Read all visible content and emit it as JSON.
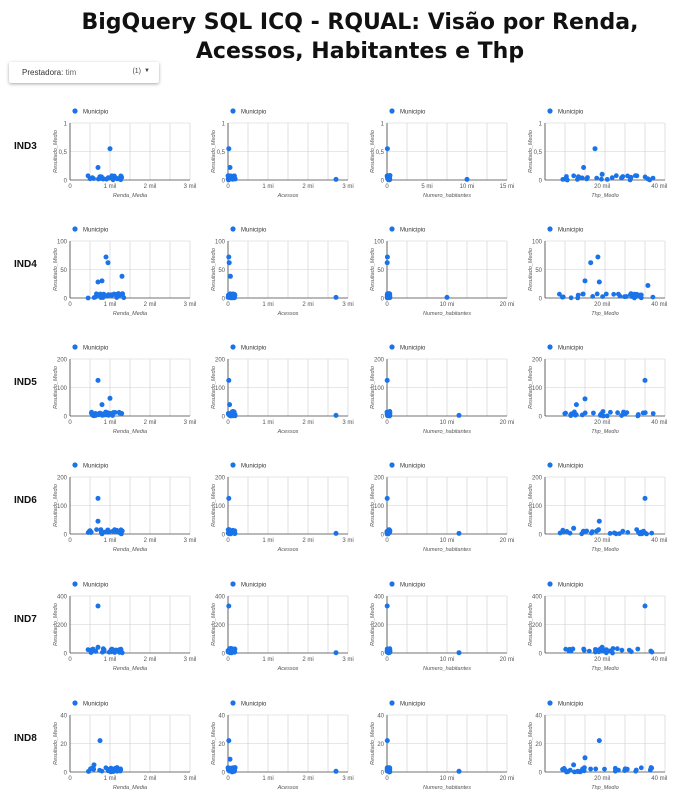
{
  "page": {
    "title_line1": "BigQuery SQL ICQ - RQUAL: Visão por Renda,",
    "title_line2": "Acessos, Habitantes e  Thp"
  },
  "filter": {
    "label": "Prestadora",
    "value": "tim",
    "count": "(1)",
    "dropdown_icon": "triangle-down-icon"
  },
  "legend_label": "Municipio",
  "y_axis_title": "Resultado_Medio",
  "colors": {
    "point": "#1a73e8",
    "grid": "#cfcfcf",
    "axis": "#444444",
    "text": "#555555"
  },
  "rows": [
    "IND3",
    "IND4",
    "IND5",
    "IND6",
    "IND7",
    "IND8"
  ],
  "x_axes": [
    {
      "label": "Renda_Media",
      "ticks": [
        0,
        1000,
        2000,
        3000
      ],
      "tick_labels": [
        "0",
        "1 mil",
        "2 mil",
        "3 mil"
      ],
      "max": 3000
    },
    {
      "label": "Acessos",
      "ticks": [
        0,
        1000000,
        2000000,
        3000000
      ],
      "tick_labels": [
        "0",
        "1 mi",
        "2 mi",
        "3 mi"
      ],
      "max": 3000000
    },
    {
      "label": "Numero_habitantes",
      "ticks": [
        0,
        5000000,
        10000000,
        15000000
      ],
      "tick_labels": [
        "0",
        "5 mi",
        "10 mi",
        "15 mi"
      ],
      "max": 15000000,
      "ticks_alt": [
        0,
        10000000,
        20000000
      ],
      "tick_labels_alt": [
        "0",
        "10 mi",
        "20 mi"
      ],
      "max_alt": 20000000
    },
    {
      "label": "Thp_Medio",
      "ticks": [
        20000,
        40000
      ],
      "tick_labels": [
        "20 mil",
        "40 mil"
      ],
      "min": 0,
      "max": 42000
    }
  ],
  "chart_data": [
    {
      "row": "IND3",
      "type": "scatter",
      "legend": "Municipio",
      "ylabel": "Resultado_Medio",
      "ylim": [
        0,
        1
      ],
      "yticks": [
        0,
        0.5,
        1
      ],
      "ytick_labels": [
        "0",
        "0,5",
        "1"
      ],
      "outliers": {
        "renda": [
          [
            1000,
            0.55
          ],
          [
            700,
            0.22
          ]
        ],
        "acessos": [
          [
            20000,
            0.55
          ],
          [
            50000,
            0.22
          ],
          [
            2700000,
            0.01
          ]
        ],
        "habitantes": [
          [
            50000,
            0.55
          ],
          [
            10000000,
            0.01
          ]
        ],
        "thp": [
          [
            17500,
            0.55
          ],
          [
            13500,
            0.22
          ],
          [
            20000,
            0.1
          ],
          [
            36000,
            0.02
          ]
        ]
      }
    },
    {
      "row": "IND4",
      "type": "scatter",
      "legend": "Municipio",
      "ylabel": "Resultado_Medio",
      "ylim": [
        0,
        100
      ],
      "yticks": [
        0,
        50,
        100
      ],
      "ytick_labels": [
        "0",
        "50",
        "100"
      ],
      "outliers": {
        "renda": [
          [
            900,
            72
          ],
          [
            950,
            62
          ],
          [
            1300,
            38
          ],
          [
            700,
            28
          ],
          [
            800,
            30
          ]
        ],
        "acessos": [
          [
            20000,
            72
          ],
          [
            30000,
            62
          ],
          [
            60000,
            38
          ],
          [
            2700000,
            1
          ]
        ],
        "habitantes": [
          [
            60000,
            72
          ],
          [
            30000,
            62
          ],
          [
            10000000,
            1
          ]
        ],
        "thp": [
          [
            18500,
            72
          ],
          [
            16000,
            62
          ],
          [
            36000,
            22
          ],
          [
            14000,
            30
          ],
          [
            19000,
            28
          ]
        ]
      }
    },
    {
      "row": "IND5",
      "type": "scatter",
      "legend": "Municipio",
      "ylabel": "Resultado_Medio",
      "ylim": [
        0,
        200
      ],
      "yticks": [
        0,
        100,
        200
      ],
      "ytick_labels": [
        "0",
        "100",
        "200"
      ],
      "outliers": {
        "renda": [
          [
            700,
            125
          ],
          [
            1000,
            62
          ],
          [
            800,
            40
          ]
        ],
        "acessos": [
          [
            20000,
            125
          ],
          [
            40000,
            40
          ],
          [
            2700000,
            2
          ]
        ],
        "habitantes": [
          [
            40000,
            125
          ],
          [
            12000000,
            2
          ]
        ],
        "thp": [
          [
            35000,
            125
          ],
          [
            14000,
            60
          ],
          [
            11000,
            40
          ]
        ]
      }
    },
    {
      "row": "IND6",
      "type": "scatter",
      "legend": "Municipio",
      "ylabel": "Resultado_Medio",
      "ylim": [
        0,
        200
      ],
      "yticks": [
        0,
        100,
        200
      ],
      "ytick_labels": [
        "0",
        "100",
        "200"
      ],
      "outliers": {
        "renda": [
          [
            700,
            125
          ],
          [
            700,
            45
          ]
        ],
        "acessos": [
          [
            20000,
            125
          ],
          [
            2700000,
            2
          ]
        ],
        "habitantes": [
          [
            40000,
            125
          ],
          [
            12000000,
            2
          ]
        ],
        "thp": [
          [
            35000,
            125
          ],
          [
            19000,
            45
          ],
          [
            10000,
            20
          ]
        ]
      }
    },
    {
      "row": "IND7",
      "type": "scatter",
      "legend": "Municipio",
      "ylabel": "Resultado_Medio",
      "ylim": [
        0,
        400
      ],
      "yticks": [
        0,
        200,
        400
      ],
      "ytick_labels": [
        "0",
        "200",
        "400"
      ],
      "outliers": {
        "renda": [
          [
            700,
            330
          ],
          [
            700,
            40
          ]
        ],
        "acessos": [
          [
            20000,
            330
          ],
          [
            2700000,
            2
          ]
        ],
        "habitantes": [
          [
            40000,
            330
          ],
          [
            12000000,
            2
          ]
        ],
        "thp": [
          [
            35000,
            330
          ],
          [
            20000,
            40
          ]
        ]
      }
    },
    {
      "row": "IND8",
      "type": "scatter",
      "legend": "Municipio",
      "ylabel": "Resultado_Medio",
      "ylim": [
        0,
        40
      ],
      "yticks": [
        0,
        20,
        40
      ],
      "ytick_labels": [
        "0",
        "20",
        "40"
      ],
      "outliers": {
        "renda": [
          [
            750,
            22
          ],
          [
            600,
            5
          ]
        ],
        "acessos": [
          [
            20000,
            22
          ],
          [
            50000,
            9
          ],
          [
            2700000,
            0.5
          ]
        ],
        "habitantes": [
          [
            50000,
            22
          ],
          [
            12000000,
            0.5
          ]
        ],
        "thp": [
          [
            19000,
            22
          ],
          [
            14000,
            10
          ],
          [
            10000,
            5
          ]
        ]
      }
    }
  ]
}
